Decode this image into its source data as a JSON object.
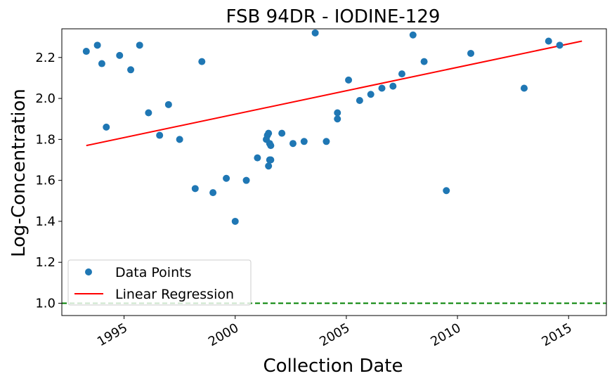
{
  "chart_data": {
    "type": "scatter",
    "title": "FSB 94DR - IODINE-129",
    "xlabel": "Collection Date",
    "ylabel": "Log-Concentration",
    "xlim": [
      1992.2,
      2016.7
    ],
    "ylim": [
      0.94,
      2.34
    ],
    "x_ticks": [
      1995,
      2000,
      2005,
      2010,
      2015
    ],
    "y_ticks": [
      "1.0",
      "1.2",
      "1.4",
      "1.6",
      "1.8",
      "2.0",
      "2.2"
    ],
    "legend": {
      "position": "lower-left",
      "entries": [
        "Data Points",
        "Linear Regression"
      ]
    },
    "colors": {
      "points": "#1f77b4",
      "regression": "#ff0000",
      "threshold": "#008000"
    },
    "series": [
      {
        "name": "Data Points",
        "kind": "scatter",
        "x": [
          1993.3,
          1993.8,
          1994.0,
          1994.2,
          1994.8,
          1995.3,
          1995.7,
          1996.1,
          1996.6,
          1997.0,
          1997.5,
          1998.2,
          1998.5,
          1999.0,
          1999.6,
          2000.0,
          2000.5,
          2001.0,
          2001.4,
          2001.45,
          2001.5,
          2001.55,
          2001.6,
          2001.5,
          2001.55,
          2001.6,
          2002.1,
          2002.6,
          2003.1,
          2003.6,
          2004.1,
          2004.6,
          2004.6,
          2005.1,
          2005.6,
          2006.1,
          2006.6,
          2007.1,
          2007.5,
          2008.0,
          2008.5,
          2009.5,
          2010.6,
          2013.0,
          2014.1,
          2014.6
        ],
        "y": [
          2.23,
          2.26,
          2.17,
          1.86,
          2.21,
          2.14,
          2.26,
          1.93,
          1.82,
          1.97,
          1.8,
          1.56,
          2.18,
          1.54,
          1.61,
          1.4,
          1.6,
          1.71,
          1.8,
          1.82,
          1.83,
          1.78,
          1.77,
          1.67,
          1.7,
          1.7,
          1.83,
          1.78,
          1.79,
          2.32,
          1.79,
          1.93,
          1.9,
          2.09,
          1.99,
          2.02,
          2.05,
          2.06,
          2.12,
          2.31,
          2.18,
          1.55,
          2.22,
          2.05,
          2.28,
          2.26
        ]
      },
      {
        "name": "Linear Regression",
        "kind": "line",
        "x": [
          1993.3,
          2015.6
        ],
        "y": [
          1.77,
          2.28
        ]
      }
    ],
    "reference_line": {
      "y": 1.0,
      "style": "dashed"
    }
  }
}
